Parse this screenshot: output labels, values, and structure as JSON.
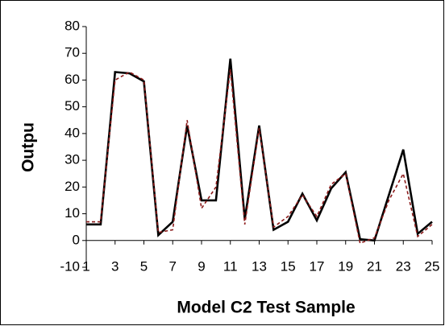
{
  "chart_data": {
    "type": "line",
    "x": [
      1,
      2,
      3,
      4,
      5,
      6,
      7,
      8,
      9,
      10,
      11,
      12,
      13,
      14,
      15,
      16,
      17,
      18,
      19,
      20,
      21,
      22,
      23,
      24,
      25
    ],
    "series": [
      {
        "color": "#000000",
        "style": "solid",
        "values": [
          6,
          6,
          63,
          62.5,
          59.5,
          2,
          7,
          43,
          15,
          15,
          68,
          8,
          43,
          4,
          7,
          17.5,
          7.5,
          19.5,
          25.5,
          0.5,
          0,
          17,
          34,
          2.5,
          7
        ]
      },
      {
        "color": "#8b1a1a",
        "style": "dashed",
        "values": [
          7,
          7,
          60,
          63,
          60,
          3,
          4,
          45,
          12,
          20,
          64,
          6,
          42,
          5,
          9,
          17,
          9,
          21,
          25,
          -1,
          1,
          15,
          25,
          1.5,
          6
        ]
      }
    ],
    "xlim": [
      1,
      25
    ],
    "xticks": [
      1,
      3,
      5,
      7,
      9,
      11,
      13,
      15,
      17,
      19,
      21,
      23,
      25
    ],
    "ylim": [
      -10,
      80
    ],
    "yticks": [
      -10,
      0,
      10,
      20,
      30,
      40,
      50,
      60,
      70,
      80
    ],
    "xlabel": "Model C2 Test Sample",
    "ylabel": "Outpu",
    "grid": false
  }
}
